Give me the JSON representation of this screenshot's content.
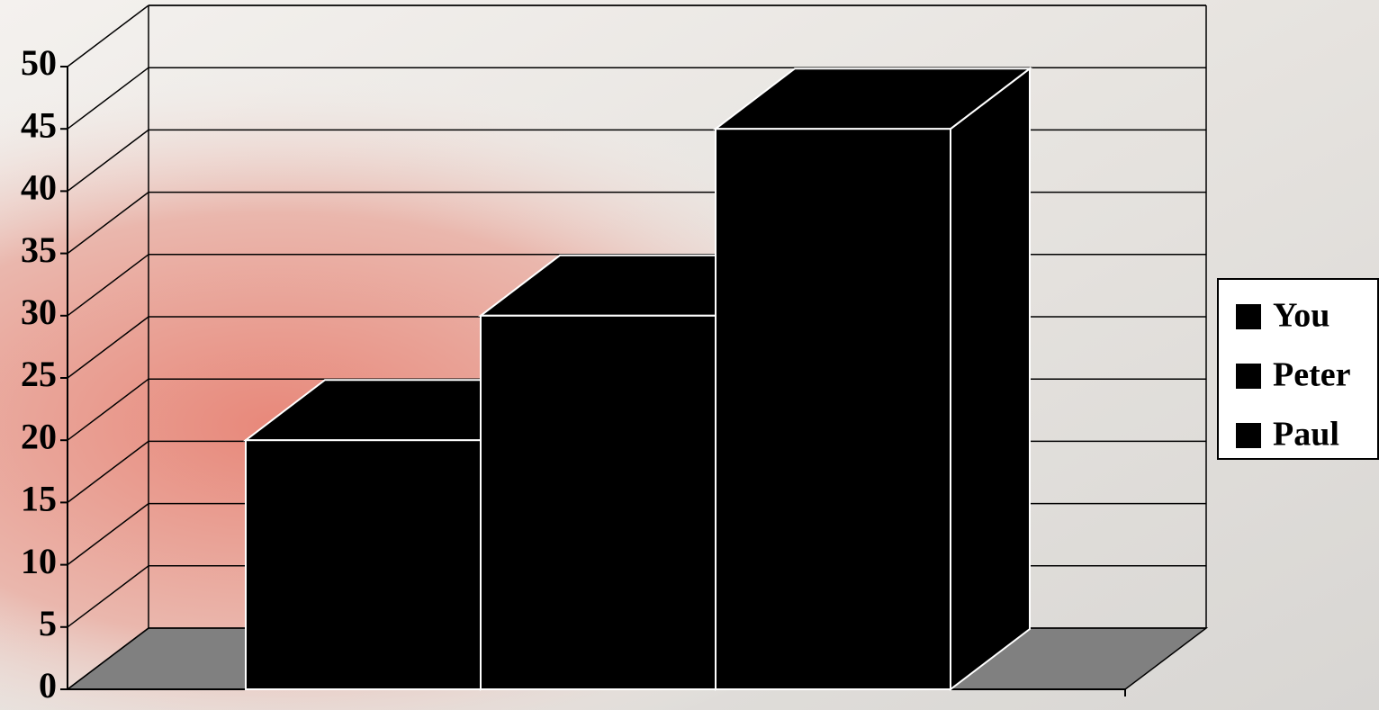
{
  "chart_data": {
    "type": "bar3d",
    "series": [
      {
        "name": "You",
        "color": "#000000",
        "values": [
          20
        ]
      },
      {
        "name": "Peter",
        "color": "#000000",
        "values": [
          30
        ]
      },
      {
        "name": "Paul",
        "color": "#000000",
        "values": [
          45
        ]
      }
    ],
    "ylim": [
      0,
      50
    ],
    "yticks": [
      0,
      5,
      10,
      15,
      20,
      25,
      30,
      35,
      40,
      45,
      50
    ],
    "grid": true,
    "legend": "right"
  }
}
